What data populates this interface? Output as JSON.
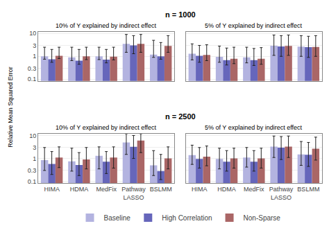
{
  "chart_data": [
    {
      "type": "bar",
      "title": "10% of Y explained by indirect effect",
      "annotations": [
        "n = 1000"
      ],
      "ylabel": "Relative Mean Squared Error",
      "categories": [
        "HIMA",
        "HDMA",
        "MedFix",
        "Pathway\nLASSO",
        "BSLMM"
      ],
      "series": [
        {
          "name": "Baseline",
          "color": "#b3b3e0",
          "values": [
            1.0,
            0.9,
            1.0,
            3.5,
            1.2
          ],
          "err_low": [
            0.75,
            0.65,
            0.72,
            1.5,
            0.9
          ],
          "err_high": [
            2.5,
            2.5,
            2.5,
            9.0,
            5.0
          ]
        },
        {
          "name": "High Correlation",
          "color": "#6666bb",
          "values": [
            0.75,
            0.65,
            0.72,
            3.0,
            1.0
          ],
          "err_low": [
            0.55,
            0.45,
            0.52,
            1.3,
            0.75
          ],
          "err_high": [
            2.0,
            2.0,
            2.0,
            8.0,
            4.0
          ]
        },
        {
          "name": "Non-Sparse",
          "color": "#aa6666",
          "values": [
            1.05,
            1.0,
            0.97,
            3.5,
            2.85
          ],
          "err_low": [
            0.8,
            0.72,
            0.7,
            1.5,
            1.5
          ],
          "err_high": [
            2.5,
            2.5,
            2.5,
            9.0,
            8.0
          ]
        }
      ],
      "log": "y",
      "ylim": [
        0.085,
        12.0
      ],
      "yticks": [
        0.1,
        0.3,
        1,
        3,
        10
      ],
      "grid": true,
      "legend": "bottom",
      "tick_labels": "y"
    },
    {
      "type": "bar",
      "title": "5% of Y explained by indirect effect",
      "categories": [
        "HIMA",
        "HDMA",
        "MedFix",
        "Pathway\nLASSO",
        "BSLMM"
      ],
      "series": [
        {
          "name": "Baseline",
          "color": "#b3b3e0",
          "values": [
            1.3,
            0.95,
            0.9,
            2.9,
            2.65
          ],
          "err_low": [
            0.7,
            0.55,
            0.52,
            1.1,
            1.0
          ],
          "err_high": [
            3.5,
            2.8,
            2.5,
            8.5,
            8.0
          ]
        },
        {
          "name": "High Correlation",
          "color": "#6666bb",
          "values": [
            1.05,
            0.68,
            0.68,
            2.7,
            2.5
          ],
          "err_low": [
            0.55,
            0.42,
            0.4,
            1.0,
            0.9
          ],
          "err_high": [
            3.0,
            2.3,
            2.2,
            8.0,
            7.5
          ]
        },
        {
          "name": "Non-Sparse",
          "color": "#aa6666",
          "values": [
            1.15,
            0.78,
            0.78,
            2.85,
            2.55
          ],
          "err_low": [
            0.65,
            0.48,
            0.45,
            1.1,
            1.0
          ],
          "err_high": [
            3.2,
            2.5,
            2.4,
            8.5,
            8.0
          ]
        }
      ],
      "log": "y",
      "ylim": [
        0.085,
        12.0
      ],
      "yticks": [
        0.1,
        0.3,
        1,
        3,
        10
      ],
      "grid": true,
      "tick_labels": false
    },
    {
      "type": "bar",
      "title": "10% of Y explained by indirect effect",
      "annotations": [
        "n = 2500"
      ],
      "categories": [
        "HIMA",
        "HDMA",
        "MedFix",
        "Pathway\nLASSO",
        "BSLMM"
      ],
      "series": [
        {
          "name": "Baseline",
          "color": "#b3b3e0",
          "values": [
            0.85,
            0.75,
            1.3,
            5.0,
            0.5
          ],
          "err_low": [
            0.3,
            0.28,
            0.35,
            1.5,
            0.18
          ],
          "err_high": [
            3.0,
            2.8,
            3.2,
            12.0,
            2.2
          ]
        },
        {
          "name": "High Correlation",
          "color": "#6666bb",
          "values": [
            0.58,
            0.52,
            0.72,
            3.2,
            0.28
          ],
          "err_low": [
            0.2,
            0.18,
            0.22,
            1.0,
            0.12
          ],
          "err_high": [
            2.0,
            1.8,
            2.0,
            10.0,
            1.5
          ]
        },
        {
          "name": "Non-Sparse",
          "color": "#aa6666",
          "values": [
            1.1,
            0.9,
            1.1,
            6.0,
            1.0
          ],
          "err_low": [
            0.4,
            0.35,
            0.38,
            1.8,
            0.35
          ],
          "err_high": [
            3.2,
            3.0,
            3.2,
            12.0,
            3.2
          ]
        }
      ],
      "log": "y",
      "ylim": [
        0.085,
        12.0
      ],
      "yticks": [
        0.1,
        0.3,
        1,
        3,
        10
      ],
      "grid": true
    },
    {
      "type": "bar",
      "title": "5% of Y explained by indirect effect",
      "categories": [
        "HIMA",
        "HDMA",
        "MedFix",
        "Pathway\nLASSO",
        "BSLMM"
      ],
      "series": [
        {
          "name": "Baseline",
          "color": "#b3b3e0",
          "values": [
            1.4,
            0.95,
            1.1,
            3.3,
            1.5
          ],
          "err_low": [
            0.55,
            0.35,
            0.42,
            1.1,
            0.5
          ],
          "err_high": [
            3.8,
            2.8,
            3.0,
            9.5,
            5.5
          ]
        },
        {
          "name": "High Correlation",
          "color": "#6666bb",
          "values": [
            0.95,
            0.72,
            0.72,
            2.95,
            1.45
          ],
          "err_low": [
            0.38,
            0.28,
            0.28,
            0.9,
            0.45
          ],
          "err_high": [
            3.0,
            2.2,
            2.2,
            9.0,
            5.0
          ]
        },
        {
          "name": "Non-Sparse",
          "color": "#aa6666",
          "values": [
            1.2,
            1.0,
            1.0,
            3.3,
            2.65
          ],
          "err_low": [
            0.48,
            0.38,
            0.38,
            1.1,
            0.85
          ],
          "err_high": [
            3.5,
            2.8,
            2.8,
            9.5,
            8.5
          ]
        }
      ],
      "log": "y",
      "ylim": [
        0.085,
        12.0
      ],
      "yticks": [
        0.1,
        0.3,
        1,
        3,
        10
      ],
      "grid": true,
      "tick_labels": "x"
    }
  ]
}
